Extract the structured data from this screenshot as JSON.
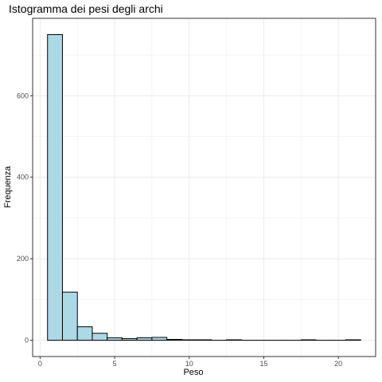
{
  "chart_data": {
    "type": "bar",
    "title": "Istogramma dei pesi degli archi",
    "xlabel": "Peso",
    "ylabel": "Frequenza",
    "xlim": [
      -0.5,
      22.5
    ],
    "ylim": [
      -40,
      790
    ],
    "bin_width": 1,
    "bins": [
      {
        "center": 1,
        "count": 750
      },
      {
        "center": 2,
        "count": 118
      },
      {
        "center": 3,
        "count": 33
      },
      {
        "center": 4,
        "count": 17
      },
      {
        "center": 5,
        "count": 6
      },
      {
        "center": 6,
        "count": 4
      },
      {
        "center": 7,
        "count": 6
      },
      {
        "center": 8,
        "count": 7
      },
      {
        "center": 9,
        "count": 2
      },
      {
        "center": 10,
        "count": 1
      },
      {
        "center": 11,
        "count": 1
      },
      {
        "center": 12,
        "count": 0
      },
      {
        "center": 13,
        "count": 1
      },
      {
        "center": 14,
        "count": 0
      },
      {
        "center": 15,
        "count": 0
      },
      {
        "center": 16,
        "count": 0
      },
      {
        "center": 17,
        "count": 0
      },
      {
        "center": 18,
        "count": 1
      },
      {
        "center": 19,
        "count": 0
      },
      {
        "center": 20,
        "count": 0
      },
      {
        "center": 21,
        "count": 1
      }
    ],
    "x_ticks": [
      {
        "value": 0,
        "label": "0"
      },
      {
        "value": 5,
        "label": "5"
      },
      {
        "value": 10,
        "label": "10"
      },
      {
        "value": 15,
        "label": "15"
      },
      {
        "value": 20,
        "label": "20"
      }
    ],
    "y_ticks": [
      {
        "value": 0,
        "label": "0"
      },
      {
        "value": 200,
        "label": "200"
      },
      {
        "value": 400,
        "label": "400"
      },
      {
        "value": 600,
        "label": "600"
      }
    ],
    "grid": true,
    "bar_fill": "#add8e6",
    "bar_stroke": "#000000",
    "grid_color": "#ebebeb",
    "panel_border": "#333333"
  }
}
